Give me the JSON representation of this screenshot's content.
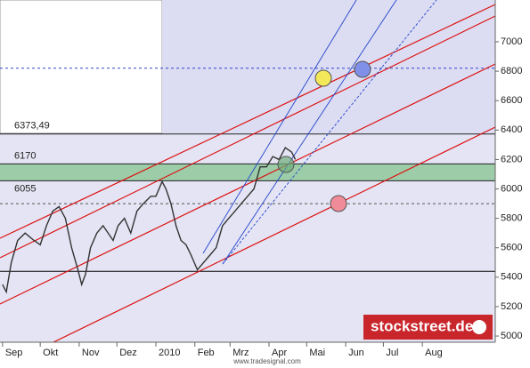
{
  "chart_data": {
    "type": "line",
    "x": [
      0,
      3,
      7,
      12,
      18,
      25,
      30,
      35,
      40,
      45,
      50,
      55,
      60,
      63,
      66,
      70,
      75,
      80,
      88,
      92,
      97,
      102,
      107,
      112,
      118,
      122,
      127,
      130,
      134,
      138,
      142,
      146,
      150,
      155,
      160,
      165,
      170,
      175,
      180,
      185,
      190,
      195,
      200,
      205,
      210,
      215,
      220,
      225,
      230,
      233
    ],
    "values": [
      5350,
      5300,
      5500,
      5650,
      5700,
      5650,
      5620,
      5750,
      5850,
      5880,
      5800,
      5600,
      5450,
      5350,
      5420,
      5600,
      5700,
      5750,
      5650,
      5750,
      5800,
      5700,
      5850,
      5900,
      5950,
      5950,
      6050,
      6000,
      5900,
      5750,
      5650,
      5620,
      5550,
      5450,
      5500,
      5550,
      5600,
      5750,
      5800,
      5850,
      5900,
      5950,
      6000,
      6150,
      6150,
      6220,
      6200,
      6280,
      6250,
      6200
    ],
    "color": "#333333",
    "xlim": [
      -2,
      392
    ],
    "ylim": [
      4958,
      7284
    ],
    "xticks": [
      {
        "value": 0,
        "label": "Sep"
      },
      {
        "value": 30,
        "label": "Okt"
      },
      {
        "value": 61,
        "label": "Nov"
      },
      {
        "value": 91,
        "label": "Dez"
      },
      {
        "value": 122,
        "label": "2010"
      },
      {
        "value": 153,
        "label": "Feb"
      },
      {
        "value": 181,
        "label": "Mrz"
      },
      {
        "value": 212,
        "label": "Apr"
      },
      {
        "value": 242,
        "label": "Mai"
      },
      {
        "value": 273,
        "label": "Jun"
      },
      {
        "value": 303,
        "label": "Jul"
      },
      {
        "value": 334,
        "label": "Aug"
      }
    ],
    "yticks": [
      5000,
      5200,
      5400,
      5600,
      5800,
      6000,
      6200,
      6400,
      6600,
      6800,
      7000
    ],
    "levels": [
      {
        "value": 6373.49,
        "label": "6373,49"
      },
      {
        "value": 6170,
        "label": "6170"
      },
      {
        "value": 6055,
        "label": "6055"
      }
    ],
    "band_color": "#8fc99a",
    "reference_lines": [
      {
        "value": 6820,
        "style": "dashed",
        "color": "#3344cc"
      },
      {
        "value": 5900,
        "style": "dashed",
        "color": "#555555"
      },
      {
        "value": 5440,
        "style": "solid",
        "color": "#000000"
      }
    ],
    "source": "www.tradesignal.com",
    "brand": "stockstreet.de"
  }
}
